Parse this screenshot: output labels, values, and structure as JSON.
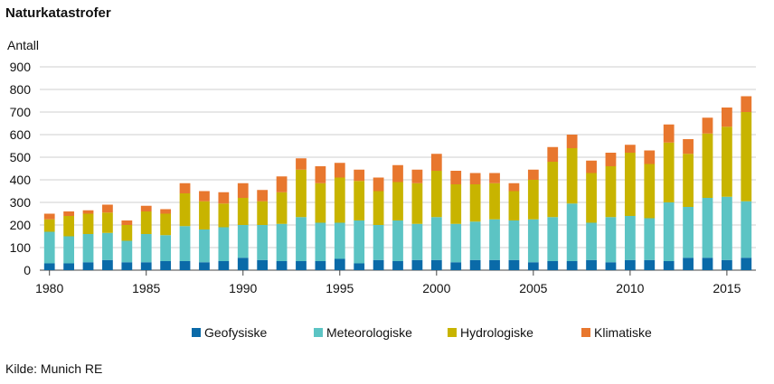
{
  "chart_data": {
    "type": "bar",
    "stacked": true,
    "title": "Naturkatastrofer",
    "ylabel": "Antall",
    "source": "Kilde: Munich RE",
    "ylim": [
      0,
      900
    ],
    "yticks": [
      0,
      100,
      200,
      300,
      400,
      500,
      600,
      700,
      800,
      900
    ],
    "xtick_labels": [
      "1980",
      "1985",
      "1990",
      "1995",
      "2000",
      "2005",
      "2010",
      "2015"
    ],
    "xtick_years": [
      1980,
      1985,
      1990,
      1995,
      2000,
      2005,
      2010,
      2015
    ],
    "grid": true,
    "legend_position": "bottom",
    "categories": [
      1980,
      1981,
      1982,
      1983,
      1984,
      1985,
      1986,
      1987,
      1988,
      1989,
      1990,
      1991,
      1992,
      1993,
      1994,
      1995,
      1996,
      1997,
      1998,
      1999,
      2000,
      2001,
      2002,
      2003,
      2004,
      2005,
      2006,
      2007,
      2008,
      2009,
      2010,
      2011,
      2012,
      2013,
      2014,
      2015,
      2016
    ],
    "series": [
      {
        "name": "Geofysiske",
        "color": "#0a6aa8",
        "values": [
          30,
          30,
          35,
          45,
          35,
          35,
          40,
          40,
          35,
          40,
          55,
          45,
          40,
          40,
          40,
          50,
          30,
          45,
          40,
          45,
          45,
          35,
          45,
          45,
          45,
          35,
          40,
          40,
          45,
          35,
          45,
          45,
          40,
          55,
          55,
          45,
          55
        ]
      },
      {
        "name": "Meteorologiske",
        "color": "#5cc4c4",
        "values": [
          140,
          120,
          125,
          120,
          95,
          125,
          115,
          155,
          145,
          150,
          145,
          155,
          165,
          195,
          170,
          160,
          190,
          155,
          180,
          160,
          190,
          170,
          170,
          180,
          175,
          190,
          195,
          255,
          165,
          200,
          195,
          185,
          260,
          225,
          265,
          280,
          250
        ]
      },
      {
        "name": "Hydrologiske",
        "color": "#c8b400",
        "values": [
          55,
          90,
          90,
          90,
          70,
          100,
          95,
          145,
          125,
          105,
          120,
          105,
          140,
          210,
          175,
          200,
          175,
          150,
          170,
          180,
          205,
          175,
          165,
          160,
          130,
          175,
          245,
          245,
          220,
          225,
          280,
          240,
          265,
          235,
          285,
          310,
          395
        ]
      },
      {
        "name": "Klimatiske",
        "color": "#e8772e",
        "values": [
          25,
          20,
          15,
          35,
          20,
          25,
          20,
          45,
          45,
          50,
          65,
          50,
          70,
          50,
          75,
          65,
          50,
          60,
          75,
          60,
          75,
          60,
          50,
          45,
          35,
          45,
          65,
          60,
          55,
          60,
          35,
          60,
          80,
          65,
          70,
          85,
          70
        ]
      }
    ]
  }
}
